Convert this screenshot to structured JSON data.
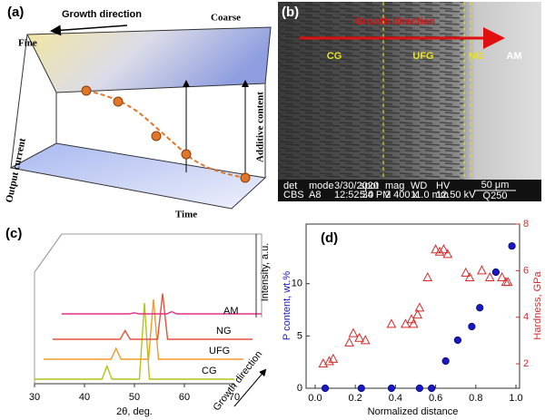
{
  "panels": {
    "a": {
      "label": "(a)",
      "arrow": "Growth direction",
      "left": "Fine",
      "right": "Coarse",
      "z_axis": "Additive content",
      "y_axis": "Output current",
      "x_axis": "Time"
    },
    "b": {
      "label": "(b)",
      "arrow": "Growth direction",
      "zones": [
        "CG",
        "UFG",
        "NG",
        "AM"
      ],
      "info": [
        [
          "det",
          "CBS"
        ],
        [
          "mode",
          "A8"
        ],
        [
          "3/30/2020",
          "12:52:34 PM"
        ],
        [
          "spot",
          "5.0"
        ],
        [
          "mag",
          "2 400 x"
        ],
        [
          "WD",
          "11.0 mm"
        ],
        [
          "HV",
          "12.50 kV"
        ]
      ],
      "scale": "50 μm",
      "id": "Q250"
    }
  },
  "chart_data": [
    {
      "type": "line",
      "label": "(c)",
      "xlabel": "2θ, deg.",
      "ylabel": "Intensity, a.u.",
      "arrow": "Growth direction",
      "x": [
        30,
        43.5,
        44.5,
        45.5,
        51,
        52,
        53,
        70
      ],
      "xlim": [
        30,
        70
      ],
      "xticks": [
        30,
        40,
        50,
        60,
        70
      ],
      "ylim": [
        0,
        100
      ],
      "series": [
        {
          "name": "CG",
          "color": "#b5c21c",
          "values": [
            0,
            0,
            12,
            0,
            0,
            70,
            0,
            0
          ]
        },
        {
          "name": "UFG",
          "color": "#f29a2e",
          "values": [
            0,
            0,
            10,
            0,
            0,
            55,
            0,
            0
          ]
        },
        {
          "name": "NG",
          "color": "#e5533d",
          "values": [
            0,
            0,
            8,
            0,
            0,
            42,
            0,
            0
          ]
        },
        {
          "name": "AM",
          "color": "#e0308a",
          "values": [
            5,
            5,
            6,
            5,
            5,
            7,
            5,
            5
          ]
        }
      ]
    },
    {
      "type": "scatter",
      "label": "(d)",
      "xlabel": "Normalized distance",
      "ylabel": "P content, wt.%",
      "y2label": "Hardness, GPa",
      "xlim": [
        -0.045,
        1.018
      ],
      "xticks": [
        {
          "value": 0,
          "label": "0.0"
        },
        0.2,
        0.4,
        0.6,
        0.8,
        {
          "value": 1,
          "label": "1.0"
        }
      ],
      "ylim": [
        0,
        15.7
      ],
      "yticks": [
        0,
        5,
        10
      ],
      "y2lim": [
        0.95,
        8
      ],
      "y2ticks": [
        2,
        4,
        6,
        8
      ],
      "series": [
        {
          "color": "#1818c8",
          "marker": "circle",
          "x": [
            0.05,
            0.23,
            0.38,
            0.52,
            0.58,
            0.65,
            0.71,
            0.78,
            0.82,
            0.9,
            0.98
          ],
          "values": [
            0,
            0,
            0,
            0,
            0,
            2.6,
            4.6,
            5.9,
            7.7,
            11.1,
            13.6
          ]
        },
        {
          "color": "#d42a2a",
          "marker": "triangle",
          "axis": "y2",
          "x": [
            0.04,
            0.07,
            0.09,
            0.17,
            0.19,
            0.22,
            0.25,
            0.38,
            0.45,
            0.48,
            0.49,
            0.51,
            0.52,
            0.56,
            0.6,
            0.62,
            0.64,
            0.66,
            0.75,
            0.77,
            0.83,
            0.87,
            0.93,
            0.95,
            0.96
          ],
          "values": [
            2.0,
            2.1,
            2.2,
            2.9,
            3.3,
            3.1,
            3.0,
            3.7,
            3.7,
            3.9,
            3.7,
            4.1,
            4.4,
            5.7,
            6.9,
            6.8,
            6.9,
            6.7,
            5.9,
            5.7,
            6.0,
            5.7,
            5.7,
            5.5,
            5.5
          ]
        }
      ]
    }
  ]
}
